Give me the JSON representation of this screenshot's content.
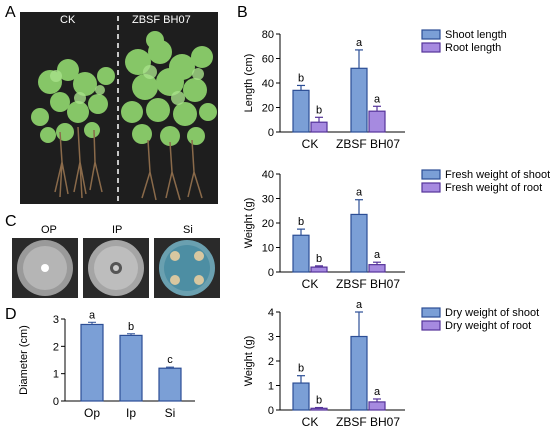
{
  "panels": {
    "A": {
      "letter": "A",
      "labels": [
        "CK",
        "ZBSF BH07"
      ]
    },
    "B": {
      "letter": "B"
    },
    "C": {
      "letter": "C",
      "dishes": [
        "OP",
        "IP",
        "Si"
      ]
    },
    "D": {
      "letter": "D"
    }
  },
  "colors": {
    "blue_fill": "#7b9fd6",
    "blue_edge": "#2c4e95",
    "purple_fill": "#a68ae0",
    "purple_edge": "#553399"
  },
  "chart_data": [
    {
      "id": "length",
      "type": "bar",
      "categories": [
        "CK",
        "ZBSF BH07"
      ],
      "ylabel": "Length (cm)",
      "ylim": [
        0,
        80
      ],
      "yticks": [
        0,
        20,
        40,
        60,
        80
      ],
      "series": [
        {
          "name": "Shoot length",
          "values": [
            34,
            52
          ],
          "errors": [
            4,
            15
          ],
          "letters": [
            "b",
            "a"
          ]
        },
        {
          "name": "Root length",
          "values": [
            8,
            17
          ],
          "errors": [
            4,
            4
          ],
          "letters": [
            "b",
            "a"
          ]
        }
      ]
    },
    {
      "id": "fresh",
      "type": "bar",
      "categories": [
        "CK",
        "ZBSF BH07"
      ],
      "ylabel": "Weight (g)",
      "ylim": [
        0,
        40
      ],
      "yticks": [
        0,
        10,
        20,
        30,
        40
      ],
      "series": [
        {
          "name": "Fresh weight of shoot",
          "values": [
            15,
            23.5
          ],
          "errors": [
            2.5,
            6
          ],
          "letters": [
            "b",
            "a"
          ]
        },
        {
          "name": "Fresh weight of root",
          "values": [
            2,
            3
          ],
          "errors": [
            0.5,
            1
          ],
          "letters": [
            "b",
            "a"
          ]
        }
      ]
    },
    {
      "id": "dry",
      "type": "bar",
      "categories": [
        "CK",
        "ZBSF BH07"
      ],
      "ylabel": "Weight (g)",
      "ylim": [
        0,
        4
      ],
      "yticks": [
        0,
        1,
        2,
        3,
        4
      ],
      "series": [
        {
          "name": "Dry weight of shoot",
          "values": [
            1.1,
            3.0
          ],
          "errors": [
            0.3,
            1.0
          ],
          "letters": [
            "b",
            "a"
          ]
        },
        {
          "name": "Dry weight of root",
          "values": [
            0.07,
            0.33
          ],
          "errors": [
            0.03,
            0.12
          ],
          "letters": [
            "b",
            "a"
          ]
        }
      ]
    },
    {
      "id": "diameter",
      "type": "bar",
      "categories": [
        "Op",
        "Ip",
        "Si"
      ],
      "ylabel": "Diameter (cm)",
      "ylim": [
        0,
        3
      ],
      "yticks": [
        0,
        1,
        2,
        3
      ],
      "series": [
        {
          "values": [
            2.8,
            2.4,
            1.2
          ],
          "errors": [
            0.08,
            0.06,
            0.04
          ],
          "letters": [
            "a",
            "b",
            "c"
          ]
        }
      ]
    }
  ]
}
